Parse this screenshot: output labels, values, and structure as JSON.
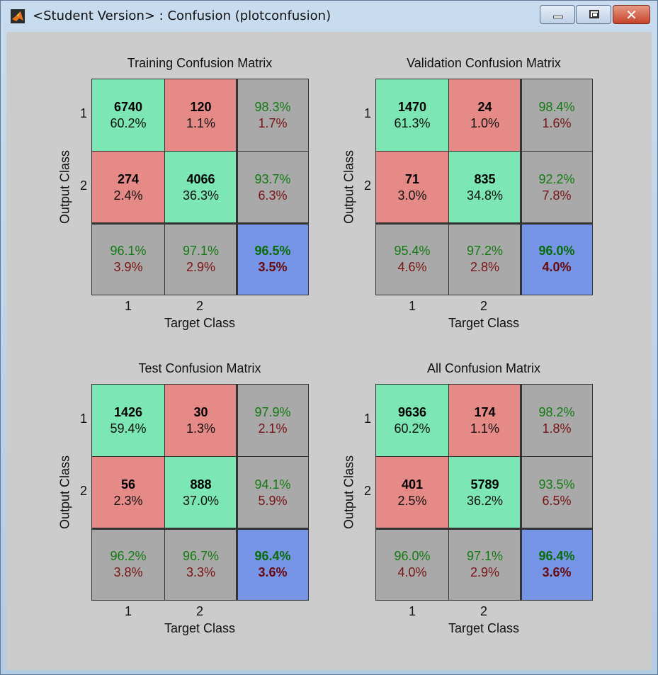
{
  "window": {
    "title": "<Student Version> : Confusion (plotconfusion)",
    "icon": "matlab-icon"
  },
  "matrices": [
    {
      "title": "Training Confusion Matrix",
      "xlabel": "Target Class",
      "ylabel": "Output Class",
      "xticks": [
        "1",
        "2"
      ],
      "yticks": [
        "1",
        "2"
      ],
      "cells": [
        [
          [
            "6740",
            "60.2%"
          ],
          [
            "120",
            "1.1%"
          ],
          [
            "98.3%",
            "1.7%"
          ]
        ],
        [
          [
            "274",
            "2.4%"
          ],
          [
            "4066",
            "36.3%"
          ],
          [
            "93.7%",
            "6.3%"
          ]
        ],
        [
          [
            "96.1%",
            "3.9%"
          ],
          [
            "97.1%",
            "2.9%"
          ],
          [
            "96.5%",
            "3.5%"
          ]
        ]
      ]
    },
    {
      "title": "Validation Confusion Matrix",
      "xlabel": "Target Class",
      "ylabel": "Output Class",
      "xticks": [
        "1",
        "2"
      ],
      "yticks": [
        "1",
        "2"
      ],
      "cells": [
        [
          [
            "1470",
            "61.3%"
          ],
          [
            "24",
            "1.0%"
          ],
          [
            "98.4%",
            "1.6%"
          ]
        ],
        [
          [
            "71",
            "3.0%"
          ],
          [
            "835",
            "34.8%"
          ],
          [
            "92.2%",
            "7.8%"
          ]
        ],
        [
          [
            "95.4%",
            "4.6%"
          ],
          [
            "97.2%",
            "2.8%"
          ],
          [
            "96.0%",
            "4.0%"
          ]
        ]
      ]
    },
    {
      "title": "Test Confusion Matrix",
      "xlabel": "Target Class",
      "ylabel": "Output Class",
      "xticks": [
        "1",
        "2"
      ],
      "yticks": [
        "1",
        "2"
      ],
      "cells": [
        [
          [
            "1426",
            "59.4%"
          ],
          [
            "30",
            "1.3%"
          ],
          [
            "97.9%",
            "2.1%"
          ]
        ],
        [
          [
            "56",
            "2.3%"
          ],
          [
            "888",
            "37.0%"
          ],
          [
            "94.1%",
            "5.9%"
          ]
        ],
        [
          [
            "96.2%",
            "3.8%"
          ],
          [
            "96.7%",
            "3.3%"
          ],
          [
            "96.4%",
            "3.6%"
          ]
        ]
      ]
    },
    {
      "title": "All Confusion Matrix",
      "xlabel": "Target Class",
      "ylabel": "Output Class",
      "xticks": [
        "1",
        "2"
      ],
      "yticks": [
        "1",
        "2"
      ],
      "cells": [
        [
          [
            "9636",
            "60.2%"
          ],
          [
            "174",
            "1.1%"
          ],
          [
            "98.2%",
            "1.8%"
          ]
        ],
        [
          [
            "401",
            "2.5%"
          ],
          [
            "5789",
            "36.2%"
          ],
          [
            "93.5%",
            "6.5%"
          ]
        ],
        [
          [
            "96.0%",
            "4.0%"
          ],
          [
            "97.1%",
            "2.9%"
          ],
          [
            "96.4%",
            "3.6%"
          ]
        ]
      ]
    }
  ],
  "colors": {
    "correct": "#7ce6b4",
    "incorrect": "#e68a87",
    "summary": "#a9a9a9",
    "overall": "#7795e6"
  }
}
